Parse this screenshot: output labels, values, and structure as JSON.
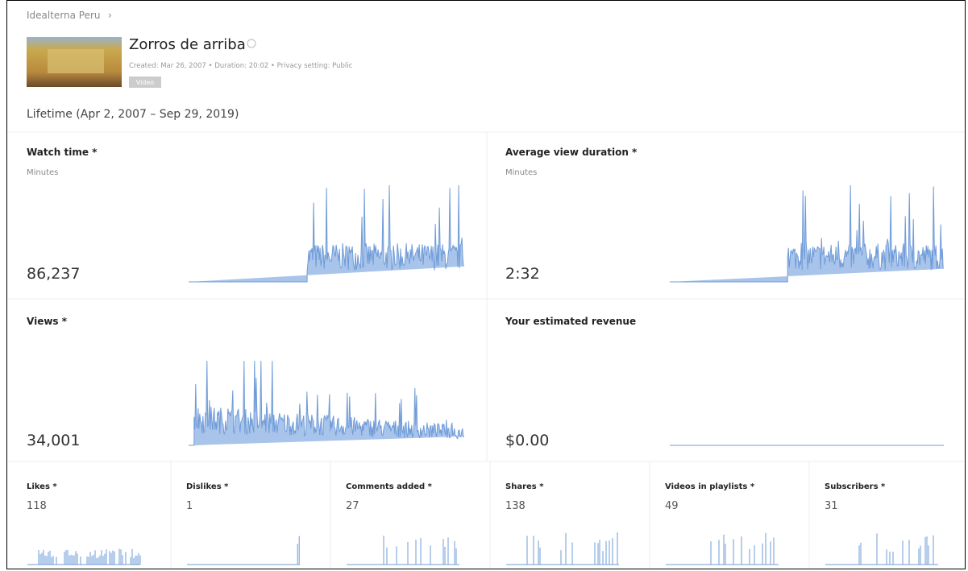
{
  "breadcrumb": "Idealterna Peru",
  "video": {
    "title": "Zorros de arriba",
    "created": "Created: Mar 26, 2007",
    "duration": "Duration: 20:02",
    "privacy": "Privacy setting: Public",
    "badge": "Video"
  },
  "period": "Lifetime (Apr 2, 2007 – Sep 29, 2019)",
  "metrics": [
    {
      "label": "Watch time *",
      "unit": "Minutes",
      "value": "86,237"
    },
    {
      "label": "Average view duration *",
      "unit": "Minutes",
      "value": "2:32"
    },
    {
      "label": "Views *",
      "value": "34,001"
    },
    {
      "label": "Your estimated revenue",
      "value": "$0.00"
    }
  ],
  "small_metrics": [
    {
      "label": "Likes *",
      "value": "118"
    },
    {
      "label": "Dislikes *",
      "value": "1"
    },
    {
      "label": "Comments added *",
      "value": "27"
    },
    {
      "label": "Shares *",
      "value": "138"
    },
    {
      "label": "Videos in playlists *",
      "value": "49"
    },
    {
      "label": "Subscribers *",
      "value": "31"
    }
  ]
}
